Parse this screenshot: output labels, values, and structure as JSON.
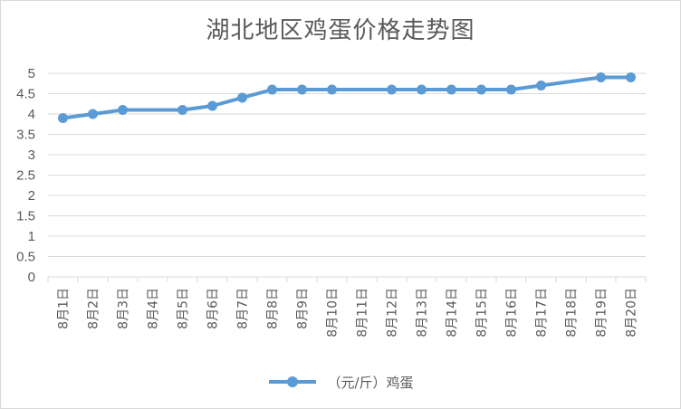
{
  "chart_data": {
    "type": "line",
    "title": "湖北地区鸡蛋价格走势图",
    "categories": [
      "8月1日",
      "8月2日",
      "8月3日",
      "8月4日",
      "8月5日",
      "8月6日",
      "8月7日",
      "8月8日",
      "8月9日",
      "8月10日",
      "8月11日",
      "8月12日",
      "8月13日",
      "8月14日",
      "8月15日",
      "8月16日",
      "8月17日",
      "8月18日",
      "8月19日",
      "8月20日"
    ],
    "series": [
      {
        "name": "（元/斤）鸡蛋",
        "values": [
          3.9,
          4.0,
          4.1,
          null,
          4.1,
          4.2,
          4.4,
          4.6,
          4.6,
          4.6,
          null,
          4.6,
          4.6,
          4.6,
          4.6,
          4.6,
          4.7,
          null,
          4.9,
          4.9
        ],
        "color": "#5b9bd5"
      }
    ],
    "ylim": [
      0,
      5
    ],
    "yticks": [
      "0",
      "0.5",
      "1",
      "1.5",
      "2",
      "2.5",
      "3",
      "3.5",
      "4",
      "4.5",
      "5"
    ],
    "grid": true,
    "legend": "bottom"
  }
}
